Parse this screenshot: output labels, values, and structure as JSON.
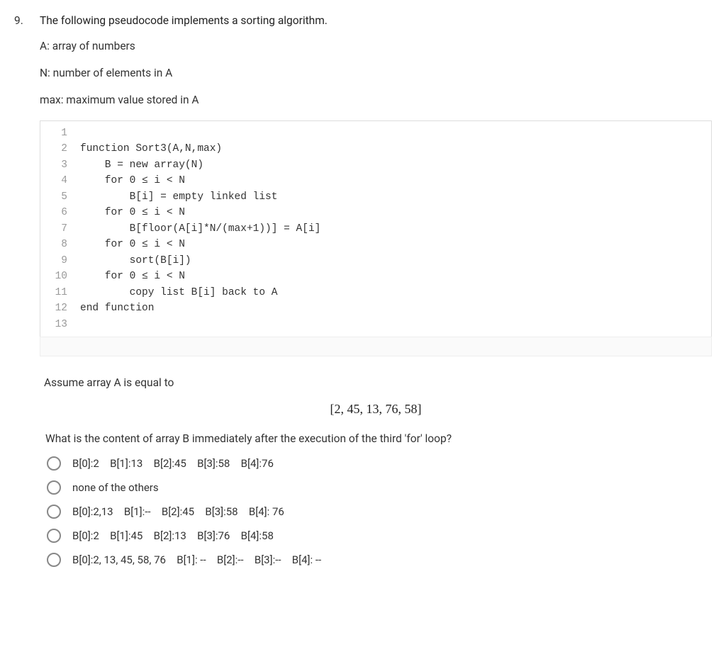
{
  "question": {
    "number": "9.",
    "stem": "The following pseudocode implements a sorting algorithm.",
    "defs": [
      "A: array of numbers",
      "N: number of elements in A",
      "max: maximum value stored in A"
    ],
    "code": {
      "lines": [
        {
          "n": "1",
          "indent": 0,
          "text": ""
        },
        {
          "n": "2",
          "indent": 0,
          "text": "function Sort3(A,N,max)"
        },
        {
          "n": "3",
          "indent": 1,
          "text": "B = new array(N)"
        },
        {
          "n": "4",
          "indent": 1,
          "text": "for 0 ≤ i < N"
        },
        {
          "n": "5",
          "indent": 2,
          "text": "B[i] = empty linked list"
        },
        {
          "n": "6",
          "indent": 1,
          "text": "for 0 ≤ i < N"
        },
        {
          "n": "7",
          "indent": 2,
          "text": "B[floor(A[i]*N/(max+1))] = A[i]"
        },
        {
          "n": "8",
          "indent": 1,
          "text": "for 0 ≤ i < N"
        },
        {
          "n": "9",
          "indent": 2,
          "text": "sort(B[i])"
        },
        {
          "n": "10",
          "indent": 1,
          "text": "for 0 ≤ i < N"
        },
        {
          "n": "11",
          "indent": 2,
          "text": "copy list B[i] back to A"
        },
        {
          "n": "12",
          "indent": 0,
          "text": "end function"
        },
        {
          "n": "13",
          "indent": 0,
          "text": ""
        }
      ],
      "indent_unit": "    "
    },
    "assume_text": "Assume array A is equal to",
    "array_expr": "[2, 45, 13, 76, 58]",
    "subquestion": "What is the content of array B immediately after the execution of the third 'for' loop?",
    "options": [
      "B[0]:2 B[1]:13 B[2]:45 B[3]:58 B[4]:76",
      "none of the others",
      "B[0]:2,13 B[1]:-- B[2]:45 B[3]:58 B[4]: 76",
      "B[0]:2 B[1]:45 B[2]:13 B[3]:76 B[4]:58",
      "B[0]:2, 13, 45, 58, 76 B[1]: -- B[2]:-- B[3]:-- B[4]: --"
    ]
  },
  "style": {
    "body_font_size": 15.5,
    "code_font_size": 14.5,
    "code_border_color": "#dddddd",
    "line_number_color": "#999999",
    "radio_border_color": "#888888",
    "text_color": "#333333"
  }
}
